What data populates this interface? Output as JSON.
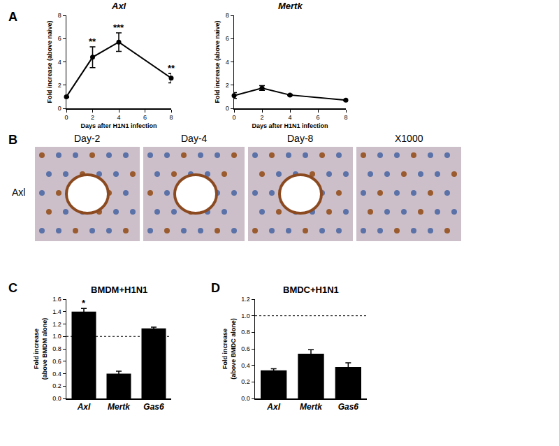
{
  "chart_data": [
    {
      "panel": "A",
      "type": "line",
      "title": "Axl",
      "x_label": "Days after H1N1 infection",
      "y_label": "Fold increase (above naive)",
      "x": [
        0,
        2,
        4,
        8
      ],
      "values": [
        1,
        4.4,
        5.7,
        2.6
      ],
      "errors": [
        0.05,
        0.9,
        0.8,
        0.4
      ],
      "significance": [
        null,
        "**",
        "***",
        "**"
      ],
      "color": "#000000",
      "marker": "circle",
      "xlim": [
        0,
        8
      ],
      "xticks": [
        0,
        2,
        4,
        6,
        8
      ],
      "ylim": [
        0,
        8
      ],
      "yticks": [
        0,
        2,
        4,
        6,
        8
      ],
      "grid": false
    },
    {
      "title": "Mertk",
      "type": "line",
      "x_label": "Days after H1N1 infection",
      "y_label": "Fold increase (above naive)",
      "x": [
        0,
        2,
        4,
        8
      ],
      "values": [
        1.1,
        1.75,
        1.15,
        0.7
      ],
      "errors": [
        0.25,
        0.2,
        0.05,
        0.05
      ],
      "color": "#000000",
      "marker": "circle",
      "xlim": [
        0,
        8
      ],
      "xticks": [
        0,
        2,
        4,
        6,
        8
      ],
      "ylim": [
        0,
        8
      ],
      "yticks": [
        0,
        2,
        4,
        6,
        8
      ],
      "grid": false
    },
    {
      "panel": "C",
      "type": "bar",
      "title": "BMDM+H1N1",
      "y_label": [
        "Fold increase",
        "(above BMDM alone)"
      ],
      "categories": [
        "Axl",
        "Mertk",
        "Gas6"
      ],
      "values": [
        1.4,
        0.4,
        1.13
      ],
      "errors": [
        0.05,
        0.04,
        0.02
      ],
      "significance": [
        "*",
        null,
        null
      ],
      "reference": 1,
      "color": "#000000",
      "ylim": [
        0,
        1.6
      ],
      "yticks": [
        {
          "value": 0,
          "label": "0.0"
        },
        0.2,
        0.4,
        0.6,
        0.8,
        {
          "value": 1,
          "label": "1.0"
        },
        1.2,
        1.4,
        1.6
      ],
      "grid": false
    },
    {
      "panel": "D",
      "type": "bar",
      "title": "BMDC+H1N1",
      "y_label": [
        "Fold increase",
        "(above BMDC alone)"
      ],
      "categories": [
        "Axl",
        "Mertk",
        "Gas6"
      ],
      "values": [
        0.34,
        0.54,
        0.38
      ],
      "errors": [
        0.02,
        0.05,
        0.05
      ],
      "reference": 1,
      "color": "#000000",
      "ylim": [
        0,
        1.2
      ],
      "yticks": [
        {
          "value": 0,
          "label": "0.0"
        },
        0.2,
        0.4,
        0.6,
        0.8,
        {
          "value": 1,
          "label": "1.0"
        },
        1.2
      ],
      "grid": false
    }
  ],
  "image_panel": {
    "panel": "B",
    "row_label": "Axl",
    "labels": [
      "Day-2",
      "Day-4",
      "Day-8",
      "X1000"
    ]
  }
}
